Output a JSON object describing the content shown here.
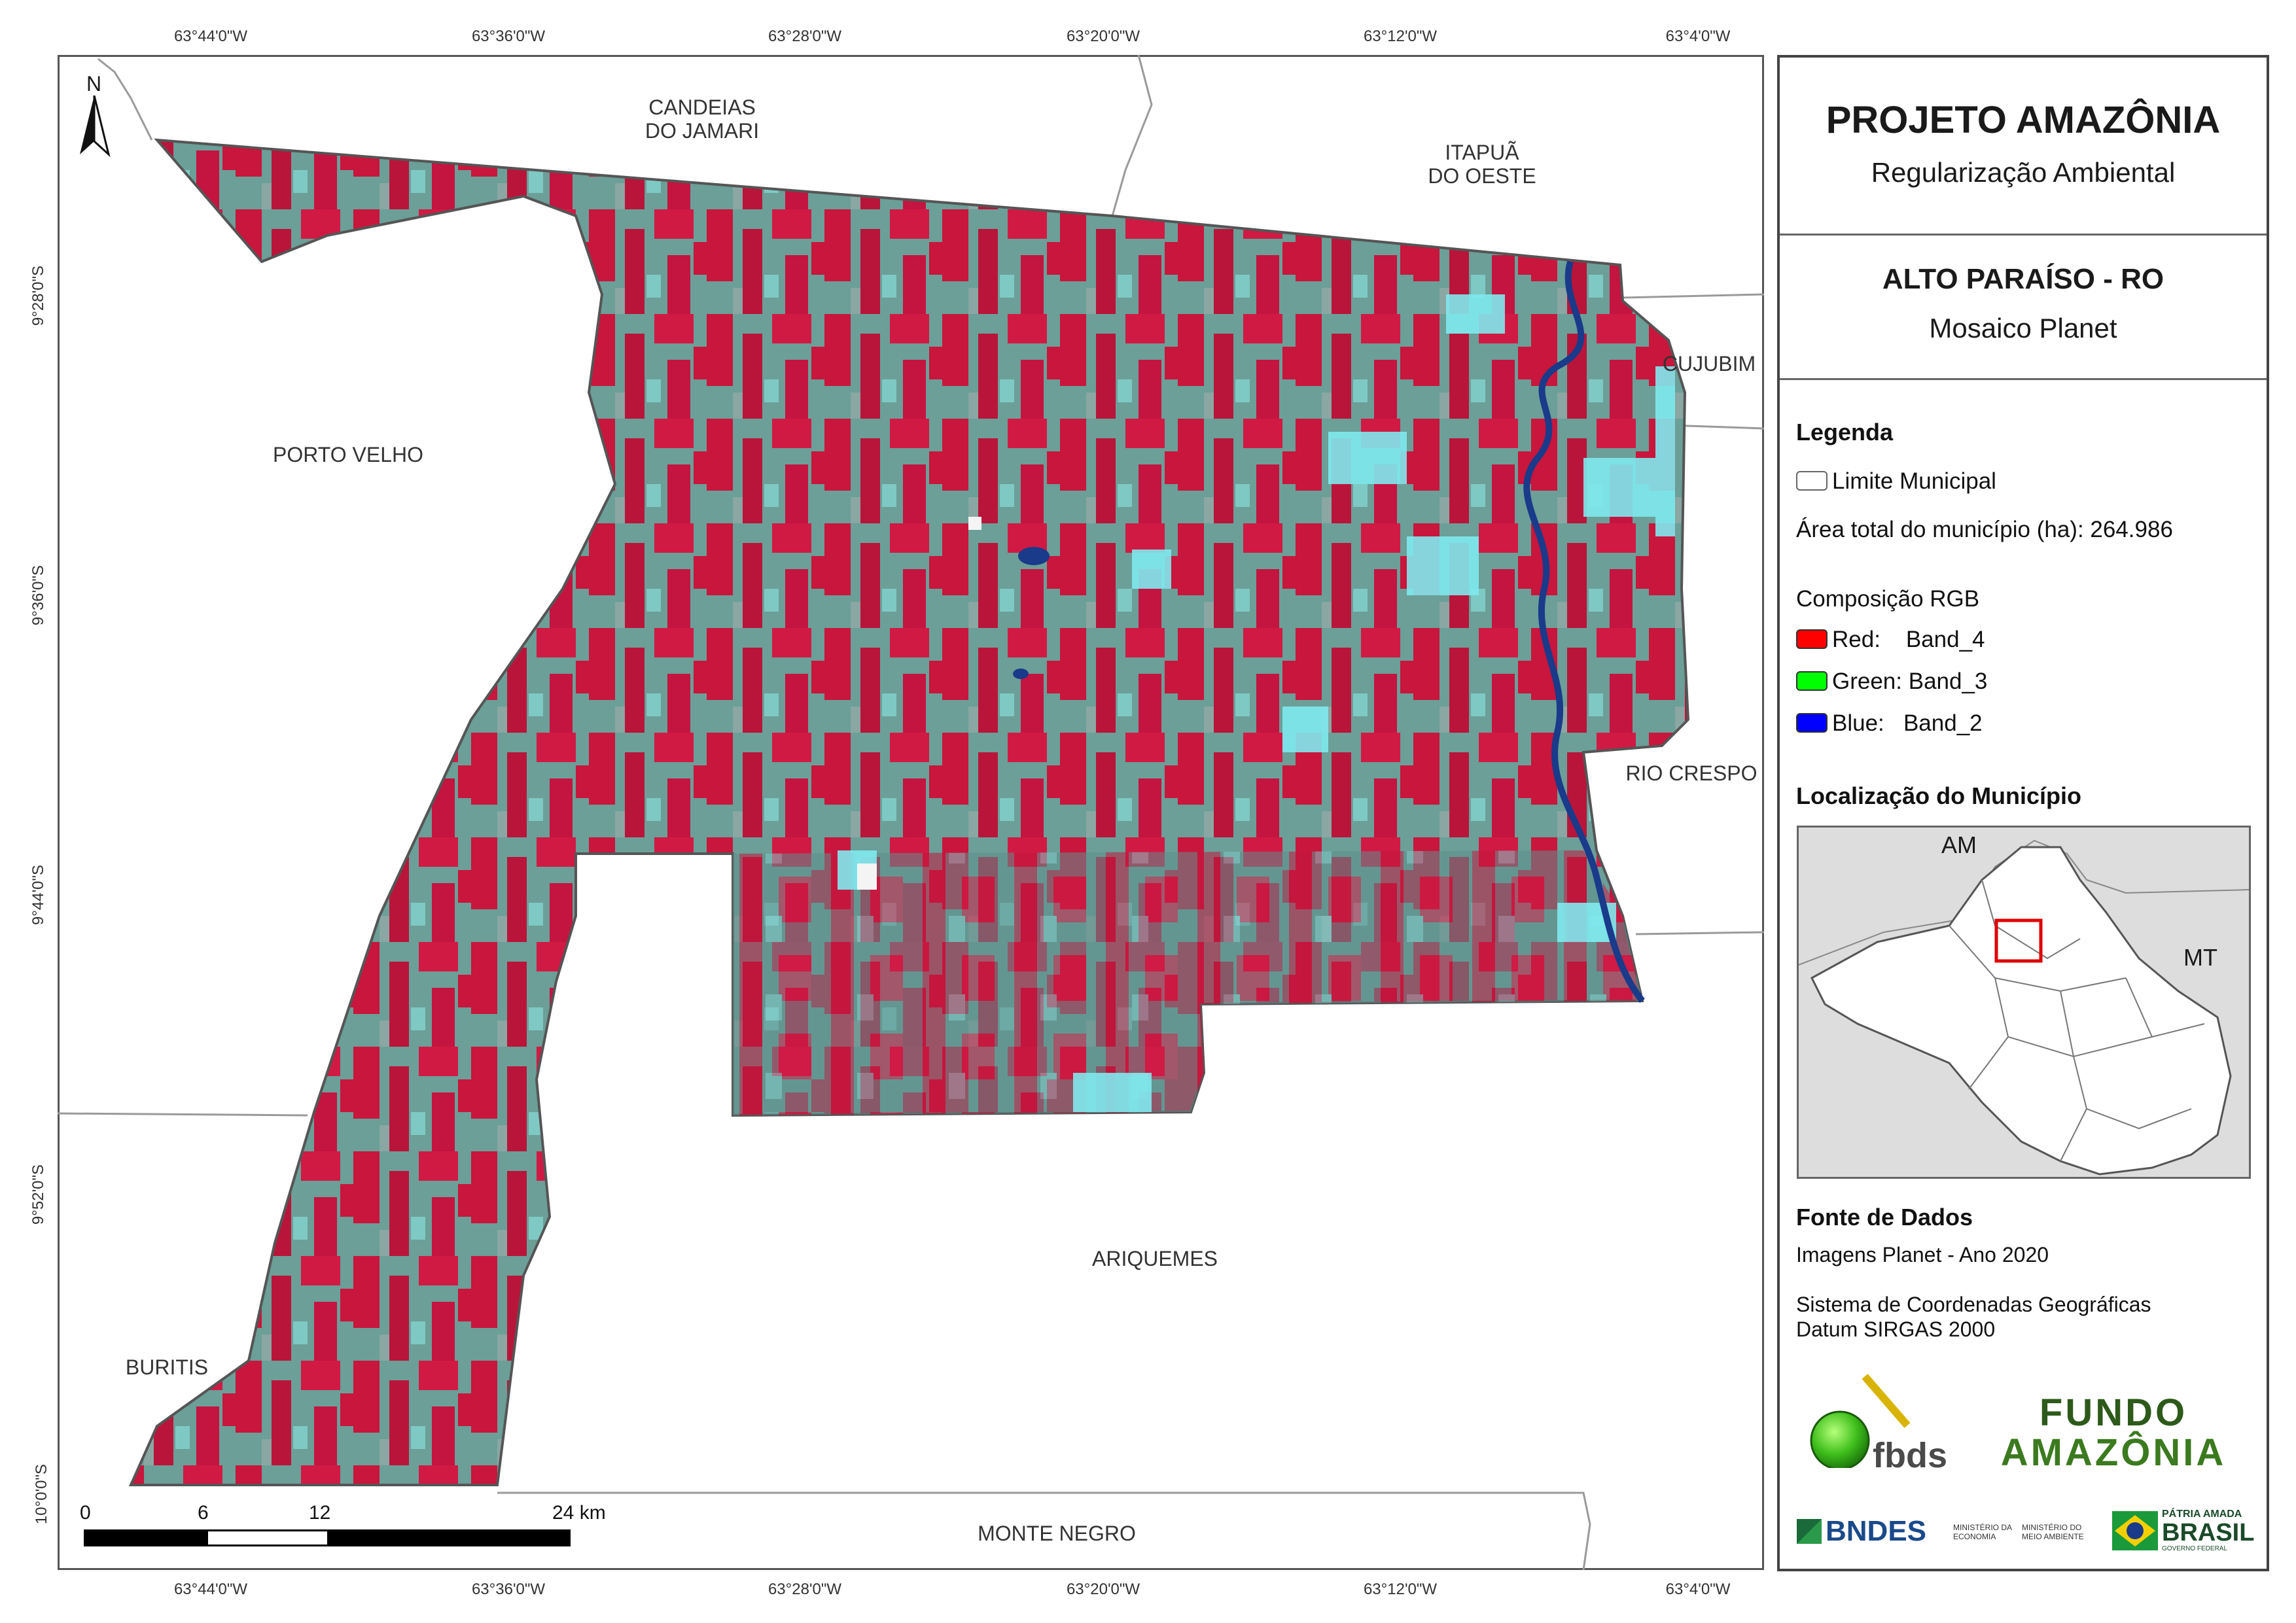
{
  "coords_top": [
    "63°44'0\"W",
    "63°36'0\"W",
    "63°28'0\"W",
    "63°20'0\"W",
    "63°12'0\"W",
    "63°4'0\"W"
  ],
  "coords_bottom": [
    "63°44'0\"W",
    "63°36'0\"W",
    "63°28'0\"W",
    "63°20'0\"W",
    "63°12'0\"W",
    "63°4'0\"W"
  ],
  "coords_left": [
    "9°28'0\"S",
    "9°36'0\"S",
    "9°44'0\"S",
    "9°52'0\"S",
    "10°0'0\"S"
  ],
  "north_label": "N",
  "municipalities": {
    "candeias": "CANDEIAS\nDO JAMARI",
    "itapua": "ITAPUÃ\nDO OESTE",
    "cujubim": "CUJUBIM",
    "porto_velho": "PORTO VELHO",
    "rio_crespo": "RIO CRESPO",
    "ariquemes": "ARIQUEMES",
    "buritis": "BURITIS",
    "monte_negro": "MONTE NEGRO"
  },
  "scale_bar": {
    "labels": [
      "0",
      "6",
      "12",
      "24 km"
    ]
  },
  "panel": {
    "title": "PROJETO AMAZÔNIA",
    "subtitle": "Regularização Ambiental",
    "municipality": "ALTO PARAÍSO - RO",
    "mosaic": "Mosaico Planet",
    "legend_title": "Legenda",
    "legend_limit": "Limite Municipal",
    "legend_area": "Área total do município (ha): 264.986",
    "rgb_title": "Composição RGB",
    "rgb_red": "Red:    Band_4",
    "rgb_green": "Green: Band_3",
    "rgb_blue": "Blue:   Band_2",
    "location_title": "Localização do Município",
    "inset_am": "AM",
    "inset_mt": "MT",
    "sources_title": "Fonte de Dados",
    "source_1": "Imagens Planet - Ano 2020",
    "source_2": "Sistema de Coordenadas Geográficas",
    "source_3": "Datum SIRGAS 2000"
  },
  "logos": {
    "fbds": "fbds",
    "fundo": "FUNDO",
    "amazonia": "AMAZÔNIA",
    "bndes": "BNDES",
    "min_economia": "MINISTÉRIO DA ECONOMIA",
    "min_meio_ambiente": "MINISTÉRIO DO MEIO AMBIENTE",
    "patria_amada": "PÁTRIA AMADA",
    "brasil": "BRASIL",
    "governo_federal": "GOVERNO FEDERAL"
  },
  "colors": {
    "vegetation_red": "#c8163c",
    "cleared_teal": "#5f9a94",
    "bright_cyan": "#6fe8ee",
    "water_blue": "#1a3a8a",
    "swatch_red": "#ff0000",
    "swatch_green": "#00ff00",
    "swatch_blue": "#0000ff"
  }
}
